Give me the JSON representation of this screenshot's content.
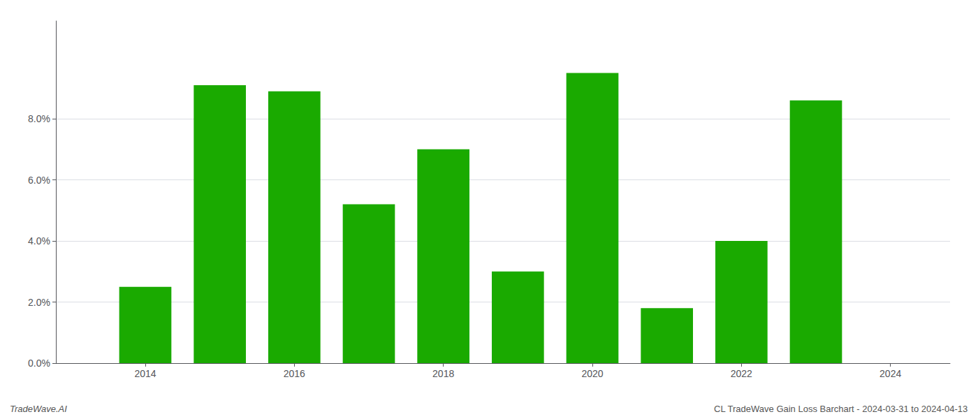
{
  "chart_data": {
    "type": "bar",
    "x": [
      2014,
      2015,
      2016,
      2017,
      2018,
      2019,
      2020,
      2021,
      2022,
      2023
    ],
    "values": [
      0.025,
      0.091,
      0.089,
      0.052,
      0.07,
      0.03,
      0.095,
      0.018,
      0.04,
      0.086
    ],
    "color": "#1aaa00",
    "xlim": [
      2012.8,
      2024.8
    ],
    "xticks": [
      2014,
      2016,
      2018,
      2020,
      2022,
      2024
    ],
    "ylim": [
      0,
      0.112
    ],
    "yticks": [
      {
        "value": 0.0,
        "label": "0.0%"
      },
      {
        "value": 0.02,
        "label": "2.0%"
      },
      {
        "value": 0.04,
        "label": "4.0%"
      },
      {
        "value": 0.06,
        "label": "6.0%"
      },
      {
        "value": 0.08,
        "label": "8.0%"
      }
    ],
    "grid": true,
    "annotations": [
      "TradeWave.AI",
      "CL TradeWave Gain Loss Barchart - 2024-03-31 to 2024-04-13"
    ]
  }
}
